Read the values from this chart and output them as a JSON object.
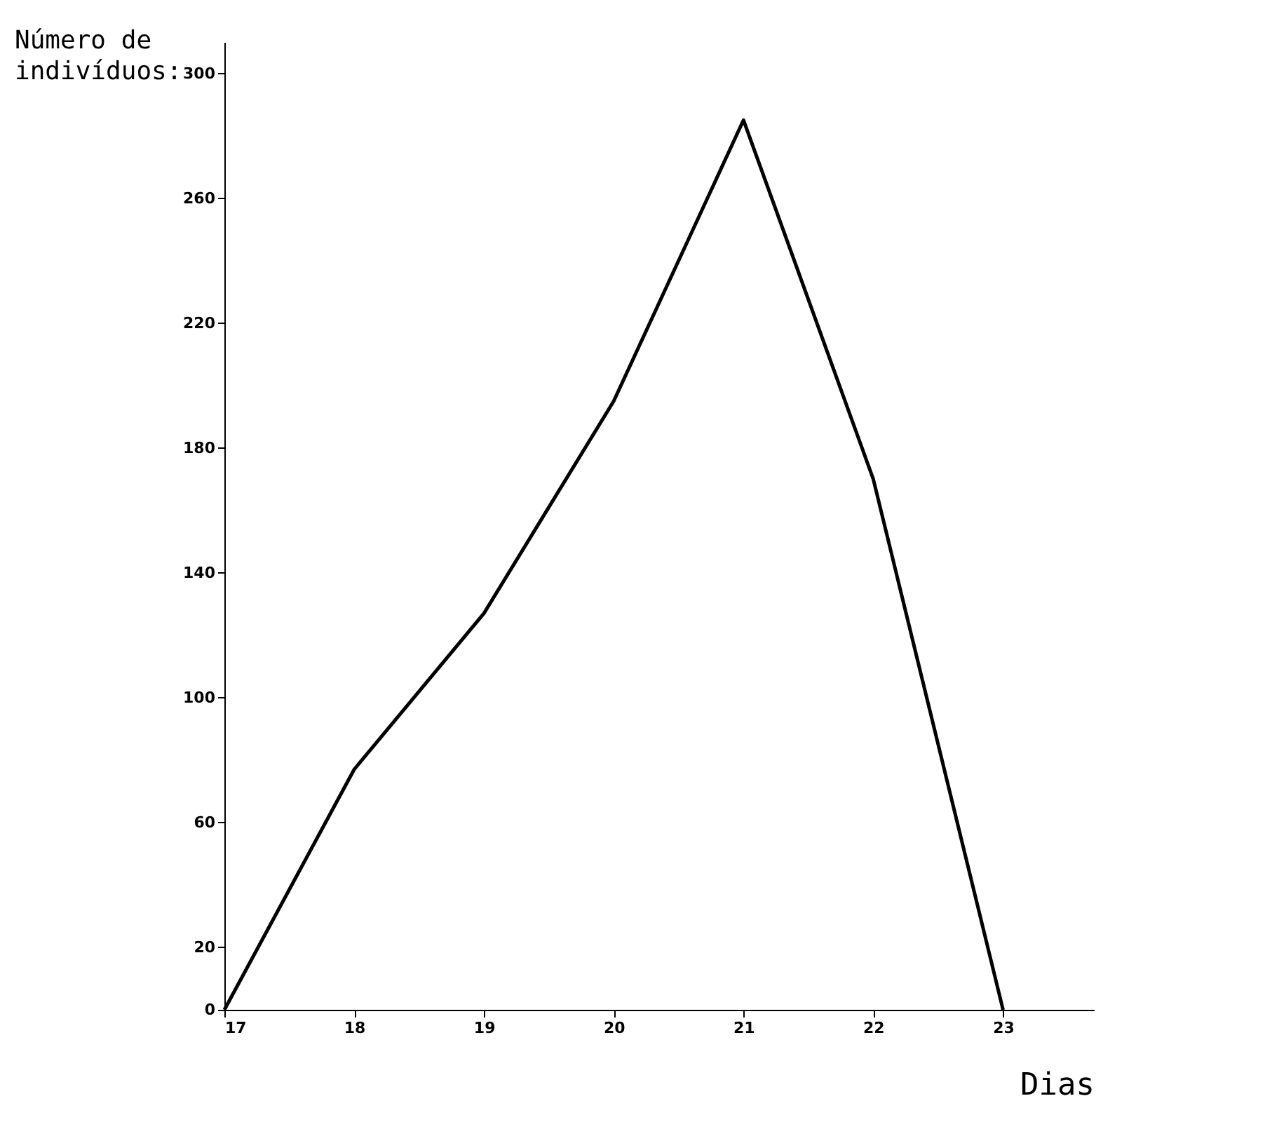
{
  "chart_data": {
    "type": "line",
    "ylabel": "Número de\nindivíduos:",
    "xlabel": "Dias",
    "x": [
      17,
      18,
      19,
      20,
      21,
      22,
      23
    ],
    "series": [
      {
        "color": "#000000",
        "values": [
          0,
          77,
          127,
          195,
          285,
          170,
          0
        ]
      }
    ],
    "xlim": [
      17,
      23.7
    ],
    "xticks": [
      17,
      18,
      19,
      20,
      21,
      22,
      23
    ],
    "ylim": [
      0,
      310
    ],
    "yticks": [
      0,
      20,
      60,
      100,
      140,
      180,
      220,
      260,
      300
    ],
    "grid": false,
    "marker": "none",
    "line_style": "solid"
  }
}
